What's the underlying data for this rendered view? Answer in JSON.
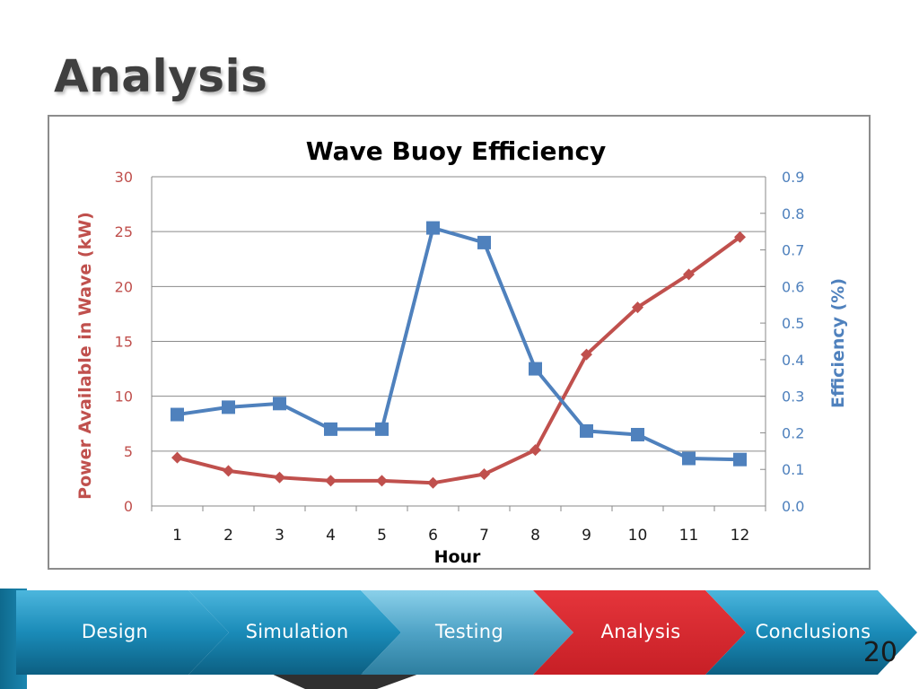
{
  "slide": {
    "title": "Analysis",
    "page_number": "20"
  },
  "nav": {
    "steps": [
      {
        "label": "Design",
        "state": "default"
      },
      {
        "label": "Simulation",
        "state": "default"
      },
      {
        "label": "Testing",
        "state": "default"
      },
      {
        "label": "Analysis",
        "state": "active"
      },
      {
        "label": "Conclusions",
        "state": "default"
      }
    ],
    "colors": {
      "default": "#1b7fa6",
      "active": "#d9252c",
      "testing": "#4aa3c8"
    }
  },
  "chart_data": {
    "type": "line",
    "title": "Wave Buoy Efficiency",
    "xlabel": "Hour",
    "ylabel_left": "Power Available in Wave (kW)",
    "ylabel_right": "Efficiency (%)",
    "categories": [
      "1",
      "2",
      "3",
      "4",
      "5",
      "6",
      "7",
      "8",
      "9",
      "10",
      "11",
      "12"
    ],
    "y_left": {
      "lim": [
        0,
        30
      ],
      "ticks": [
        "0",
        "5",
        "10",
        "15",
        "20",
        "25",
        "30"
      ],
      "color": "#c0504d"
    },
    "y_right": {
      "lim": [
        0,
        0.9
      ],
      "ticks": [
        "0.0",
        "0.1",
        "0.2",
        "0.3",
        "0.4",
        "0.5",
        "0.6",
        "0.7",
        "0.8",
        "0.9"
      ],
      "color": "#4f81bd"
    },
    "grid": true,
    "series": [
      {
        "axis": "left",
        "marker": "diamond",
        "color": "#c0504d",
        "values": [
          4.4,
          3.2,
          2.6,
          2.3,
          2.3,
          2.1,
          2.9,
          5.1,
          13.8,
          18.1,
          21.1,
          24.5
        ]
      },
      {
        "axis": "right",
        "marker": "square",
        "color": "#4f81bd",
        "values": [
          0.25,
          0.27,
          0.28,
          0.21,
          0.21,
          0.76,
          0.72,
          0.375,
          0.205,
          0.195,
          0.13,
          0.127
        ]
      }
    ]
  }
}
